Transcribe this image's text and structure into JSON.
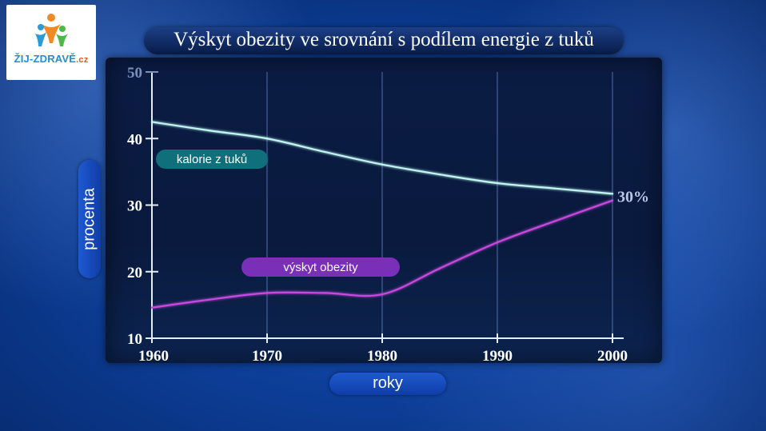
{
  "logo": {
    "text_main": "ŽIJ-ZDRAVĚ",
    "text_suffix": ".cz",
    "colors": {
      "main": "#1d8fd6",
      "suffix": "#e65a1e",
      "figure_orange": "#f08a24",
      "figure_green": "#4cb84a",
      "figure_blue": "#2b9bd8"
    }
  },
  "chart_data": {
    "type": "line",
    "title": "Výskyt obezity ve srovnání s podílem energie z tuků",
    "xlabel": "roky",
    "ylabel": "procenta",
    "x": [
      1960,
      1965,
      1970,
      1975,
      1980,
      1985,
      1990,
      1995,
      2000
    ],
    "xlim": [
      1960,
      2000
    ],
    "ylim": [
      10,
      50
    ],
    "xticks": [
      "1960",
      "1970",
      "1980",
      "1990",
      "2000"
    ],
    "yticks": [
      "10",
      "20",
      "30",
      "40",
      "50"
    ],
    "grid": "vertical",
    "series": [
      {
        "name": "kalorie z tuků",
        "color": "#bff5f0",
        "label_color": "#0f6f7a",
        "values": [
          42.5,
          41.2,
          40.0,
          38.0,
          36.1,
          34.6,
          33.3,
          32.5,
          31.7
        ]
      },
      {
        "name": "výskyt obezity",
        "color": "#c94ae0",
        "label_color": "#7a2fb8",
        "values": [
          14.6,
          15.8,
          16.8,
          16.8,
          16.6,
          20.5,
          24.4,
          27.6,
          30.7
        ]
      }
    ],
    "annotations": [
      {
        "text": "30%",
        "color": "#b8c6e8"
      }
    ]
  }
}
